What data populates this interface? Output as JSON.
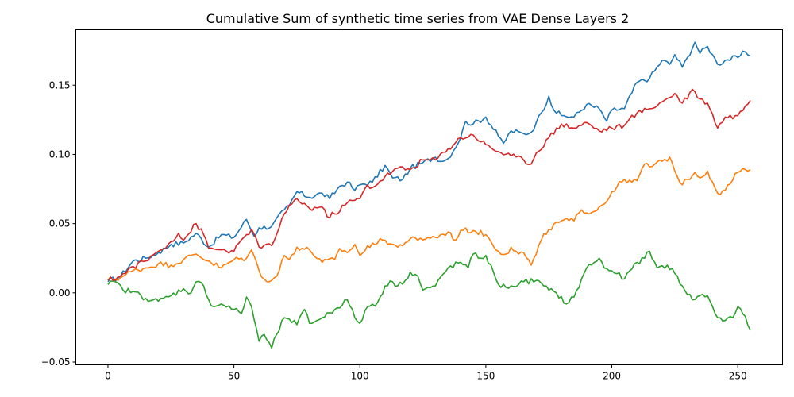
{
  "chart_data": {
    "type": "line",
    "title": "Cumulative Sum of synthetic time series from VAE Dense Layers 2",
    "xlabel": "",
    "ylabel": "",
    "xlim": [
      -12.75,
      267.75
    ],
    "ylim": [
      -0.052,
      0.19
    ],
    "xticks": [
      0,
      50,
      100,
      150,
      200,
      250
    ],
    "xtick_labels": [
      "0",
      "50",
      "100",
      "150",
      "200",
      "250"
    ],
    "yticks": [
      -0.05,
      0.0,
      0.05,
      0.1,
      0.15
    ],
    "ytick_labels": [
      "−0.05",
      "0.00",
      "0.05",
      "0.10",
      "0.15"
    ],
    "grid": false,
    "legend": false,
    "x_start": 0,
    "x_end": 255,
    "series": [
      {
        "color": "#1f77b4",
        "anchors": [
          [
            0,
            0.008
          ],
          [
            5,
            0.012
          ],
          [
            10,
            0.023
          ],
          [
            15,
            0.025
          ],
          [
            20,
            0.029
          ],
          [
            25,
            0.035
          ],
          [
            30,
            0.036
          ],
          [
            35,
            0.043
          ],
          [
            40,
            0.033
          ],
          [
            45,
            0.042
          ],
          [
            50,
            0.04
          ],
          [
            55,
            0.053
          ],
          [
            58,
            0.041
          ],
          [
            60,
            0.047
          ],
          [
            65,
            0.048
          ],
          [
            70,
            0.06
          ],
          [
            72,
            0.063
          ],
          [
            75,
            0.073
          ],
          [
            80,
            0.069
          ],
          [
            85,
            0.072
          ],
          [
            88,
            0.068
          ],
          [
            92,
            0.077
          ],
          [
            95,
            0.08
          ],
          [
            98,
            0.074
          ],
          [
            100,
            0.078
          ],
          [
            105,
            0.08
          ],
          [
            110,
            0.092
          ],
          [
            113,
            0.083
          ],
          [
            117,
            0.082
          ],
          [
            120,
            0.09
          ],
          [
            125,
            0.094
          ],
          [
            130,
            0.098
          ],
          [
            133,
            0.095
          ],
          [
            135,
            0.097
          ],
          [
            140,
            0.112
          ],
          [
            142,
            0.124
          ],
          [
            145,
            0.122
          ],
          [
            150,
            0.127
          ],
          [
            155,
            0.113
          ],
          [
            157,
            0.108
          ],
          [
            160,
            0.117
          ],
          [
            165,
            0.115
          ],
          [
            168,
            0.116
          ],
          [
            170,
            0.123
          ],
          [
            172,
            0.13
          ],
          [
            175,
            0.142
          ],
          [
            177,
            0.132
          ],
          [
            180,
            0.128
          ],
          [
            185,
            0.127
          ],
          [
            190,
            0.136
          ],
          [
            195,
            0.133
          ],
          [
            198,
            0.124
          ],
          [
            200,
            0.132
          ],
          [
            205,
            0.133
          ],
          [
            210,
            0.152
          ],
          [
            215,
            0.155
          ],
          [
            220,
            0.168
          ],
          [
            223,
            0.165
          ],
          [
            225,
            0.172
          ],
          [
            228,
            0.163
          ],
          [
            230,
            0.17
          ],
          [
            233,
            0.181
          ],
          [
            235,
            0.173
          ],
          [
            238,
            0.178
          ],
          [
            240,
            0.172
          ],
          [
            242,
            0.165
          ],
          [
            245,
            0.168
          ],
          [
            250,
            0.17
          ],
          [
            253,
            0.174
          ],
          [
            255,
            0.171
          ]
        ]
      },
      {
        "color": "#ff7f0e",
        "anchors": [
          [
            0,
            0.009
          ],
          [
            5,
            0.011
          ],
          [
            10,
            0.016
          ],
          [
            15,
            0.018
          ],
          [
            20,
            0.021
          ],
          [
            25,
            0.02
          ],
          [
            30,
            0.024
          ],
          [
            35,
            0.028
          ],
          [
            40,
            0.023
          ],
          [
            45,
            0.018
          ],
          [
            50,
            0.024
          ],
          [
            55,
            0.025
          ],
          [
            57,
            0.031
          ],
          [
            60,
            0.016
          ],
          [
            62,
            0.01
          ],
          [
            65,
            0.009
          ],
          [
            67,
            0.012
          ],
          [
            70,
            0.027
          ],
          [
            72,
            0.024
          ],
          [
            75,
            0.033
          ],
          [
            80,
            0.031
          ],
          [
            85,
            0.022
          ],
          [
            90,
            0.024
          ],
          [
            92,
            0.032
          ],
          [
            95,
            0.029
          ],
          [
            98,
            0.035
          ],
          [
            100,
            0.027
          ],
          [
            105,
            0.036
          ],
          [
            110,
            0.038
          ],
          [
            115,
            0.033
          ],
          [
            120,
            0.039
          ],
          [
            123,
            0.038
          ],
          [
            127,
            0.04
          ],
          [
            130,
            0.04
          ],
          [
            135,
            0.044
          ],
          [
            138,
            0.038
          ],
          [
            140,
            0.045
          ],
          [
            145,
            0.045
          ],
          [
            150,
            0.042
          ],
          [
            155,
            0.03
          ],
          [
            158,
            0.028
          ],
          [
            160,
            0.033
          ],
          [
            163,
            0.028
          ],
          [
            165,
            0.029
          ],
          [
            168,
            0.02
          ],
          [
            170,
            0.028
          ],
          [
            172,
            0.038
          ],
          [
            175,
            0.046
          ],
          [
            180,
            0.052
          ],
          [
            185,
            0.052
          ],
          [
            188,
            0.06
          ],
          [
            192,
            0.058
          ],
          [
            195,
            0.062
          ],
          [
            198,
            0.066
          ],
          [
            200,
            0.073
          ],
          [
            205,
            0.082
          ],
          [
            208,
            0.08
          ],
          [
            210,
            0.081
          ],
          [
            213,
            0.093
          ],
          [
            215,
            0.091
          ],
          [
            220,
            0.095
          ],
          [
            223,
            0.098
          ],
          [
            225,
            0.088
          ],
          [
            228,
            0.078
          ],
          [
            230,
            0.082
          ],
          [
            233,
            0.087
          ],
          [
            235,
            0.083
          ],
          [
            238,
            0.088
          ],
          [
            240,
            0.08
          ],
          [
            242,
            0.072
          ],
          [
            245,
            0.074
          ],
          [
            250,
            0.087
          ],
          [
            253,
            0.089
          ],
          [
            255,
            0.089
          ]
        ]
      },
      {
        "color": "#2ca02c",
        "anchors": [
          [
            0,
            0.006
          ],
          [
            3,
            0.008
          ],
          [
            6,
            0.002
          ],
          [
            10,
            0.001
          ],
          [
            15,
            -0.004
          ],
          [
            20,
            -0.006
          ],
          [
            25,
            -0.002
          ],
          [
            30,
            0.003
          ],
          [
            33,
            0.0
          ],
          [
            35,
            0.008
          ],
          [
            38,
            0.005
          ],
          [
            40,
            -0.005
          ],
          [
            42,
            -0.01
          ],
          [
            45,
            -0.008
          ],
          [
            50,
            -0.012
          ],
          [
            53,
            -0.015
          ],
          [
            55,
            -0.003
          ],
          [
            57,
            -0.01
          ],
          [
            60,
            -0.035
          ],
          [
            62,
            -0.03
          ],
          [
            65,
            -0.04
          ],
          [
            67,
            -0.03
          ],
          [
            70,
            -0.018
          ],
          [
            72,
            -0.019
          ],
          [
            75,
            -0.023
          ],
          [
            78,
            -0.012
          ],
          [
            80,
            -0.022
          ],
          [
            85,
            -0.018
          ],
          [
            90,
            -0.012
          ],
          [
            95,
            -0.005
          ],
          [
            98,
            -0.018
          ],
          [
            100,
            -0.022
          ],
          [
            103,
            -0.01
          ],
          [
            107,
            -0.007
          ],
          [
            110,
            0.005
          ],
          [
            113,
            0.008
          ],
          [
            115,
            0.005
          ],
          [
            118,
            0.009
          ],
          [
            120,
            0.015
          ],
          [
            123,
            0.012
          ],
          [
            125,
            0.002
          ],
          [
            130,
            0.005
          ],
          [
            135,
            0.018
          ],
          [
            140,
            0.022
          ],
          [
            143,
            0.018
          ],
          [
            145,
            0.028
          ],
          [
            148,
            0.025
          ],
          [
            150,
            0.027
          ],
          [
            155,
            0.006
          ],
          [
            158,
            0.004
          ],
          [
            160,
            0.005
          ],
          [
            163,
            0.006
          ],
          [
            165,
            0.008
          ],
          [
            170,
            0.009
          ],
          [
            173,
            0.005
          ],
          [
            175,
            0.002
          ],
          [
            178,
            0.0
          ],
          [
            182,
            -0.008
          ],
          [
            185,
            -0.003
          ],
          [
            190,
            0.018
          ],
          [
            193,
            0.022
          ],
          [
            195,
            0.025
          ],
          [
            197,
            0.018
          ],
          [
            200,
            0.016
          ],
          [
            205,
            0.01
          ],
          [
            210,
            0.022
          ],
          [
            213,
            0.025
          ],
          [
            215,
            0.03
          ],
          [
            218,
            0.018
          ],
          [
            222,
            0.02
          ],
          [
            225,
            0.014
          ],
          [
            228,
            0.005
          ],
          [
            232,
            -0.005
          ],
          [
            235,
            -0.002
          ],
          [
            238,
            -0.002
          ],
          [
            240,
            -0.01
          ],
          [
            242,
            -0.018
          ],
          [
            245,
            -0.02
          ],
          [
            248,
            -0.018
          ],
          [
            250,
            -0.01
          ],
          [
            253,
            -0.017
          ],
          [
            255,
            -0.027
          ]
        ]
      },
      {
        "color": "#d62728",
        "anchors": [
          [
            0,
            0.009
          ],
          [
            5,
            0.012
          ],
          [
            10,
            0.019
          ],
          [
            15,
            0.023
          ],
          [
            20,
            0.03
          ],
          [
            25,
            0.037
          ],
          [
            28,
            0.043
          ],
          [
            30,
            0.038
          ],
          [
            35,
            0.05
          ],
          [
            38,
            0.042
          ],
          [
            40,
            0.032
          ],
          [
            45,
            0.031
          ],
          [
            50,
            0.03
          ],
          [
            55,
            0.042
          ],
          [
            57,
            0.046
          ],
          [
            60,
            0.033
          ],
          [
            65,
            0.034
          ],
          [
            70,
            0.057
          ],
          [
            75,
            0.068
          ],
          [
            80,
            0.061
          ],
          [
            85,
            0.062
          ],
          [
            87,
            0.055
          ],
          [
            90,
            0.057
          ],
          [
            95,
            0.065
          ],
          [
            100,
            0.068
          ],
          [
            103,
            0.078
          ],
          [
            105,
            0.076
          ],
          [
            110,
            0.084
          ],
          [
            115,
            0.09
          ],
          [
            120,
            0.089
          ],
          [
            125,
            0.096
          ],
          [
            130,
            0.096
          ],
          [
            135,
            0.104
          ],
          [
            140,
            0.112
          ],
          [
            145,
            0.114
          ],
          [
            150,
            0.107
          ],
          [
            155,
            0.102
          ],
          [
            160,
            0.099
          ],
          [
            165,
            0.096
          ],
          [
            168,
            0.093
          ],
          [
            170,
            0.101
          ],
          [
            175,
            0.112
          ],
          [
            180,
            0.122
          ],
          [
            185,
            0.119
          ],
          [
            190,
            0.123
          ],
          [
            195,
            0.117
          ],
          [
            200,
            0.119
          ],
          [
            205,
            0.121
          ],
          [
            210,
            0.13
          ],
          [
            215,
            0.133
          ],
          [
            220,
            0.138
          ],
          [
            225,
            0.144
          ],
          [
            228,
            0.137
          ],
          [
            232,
            0.147
          ],
          [
            235,
            0.14
          ],
          [
            238,
            0.137
          ],
          [
            240,
            0.129
          ],
          [
            242,
            0.119
          ],
          [
            245,
            0.127
          ],
          [
            250,
            0.128
          ],
          [
            253,
            0.135
          ],
          [
            255,
            0.139
          ]
        ]
      }
    ]
  }
}
